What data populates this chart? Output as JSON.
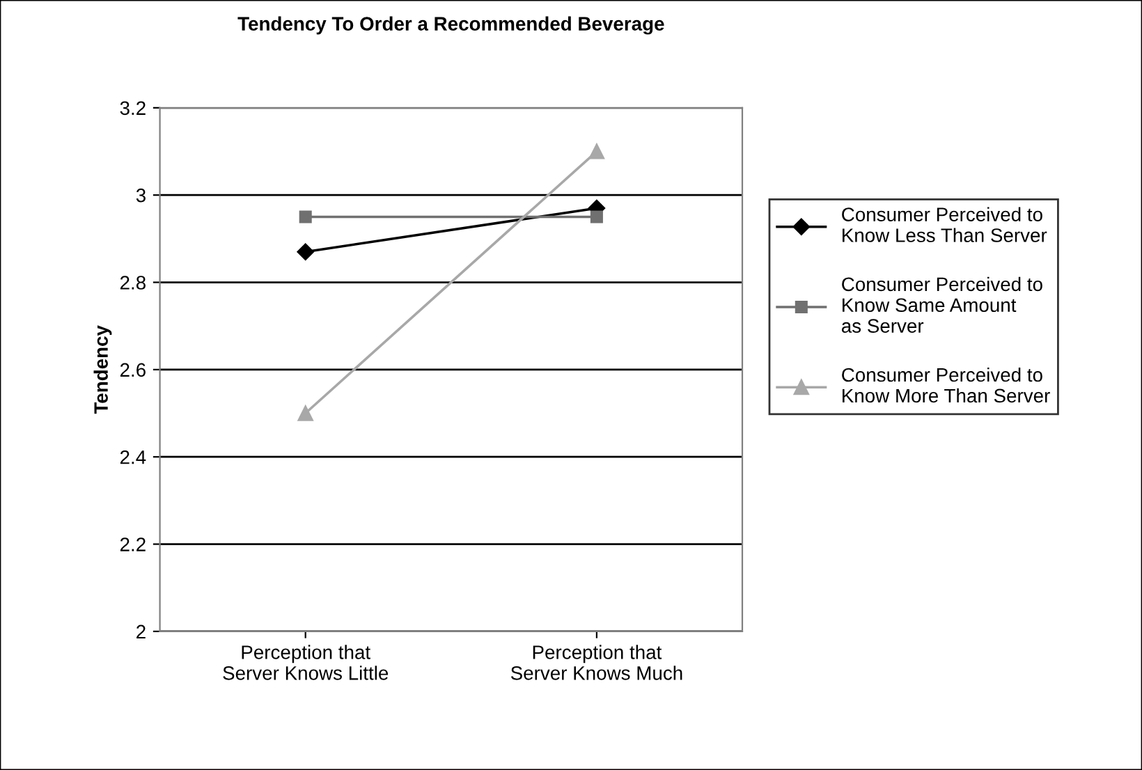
{
  "chart_data": {
    "type": "line",
    "title": "Tendency To Order a Recommended Beverage",
    "ylabel": "Tendency",
    "categories": [
      "Perception that\nServer Knows Little",
      "Perception that\nServer Knows Much"
    ],
    "series": [
      {
        "name": "Consumer Perceived to\nKnow Less Than Server",
        "color": "#000000",
        "marker": "diamond",
        "values": [
          2.87,
          2.97
        ]
      },
      {
        "name": "Consumer Perceived to\nKnow Same Amount\nas Server",
        "color": "#707070",
        "marker": "square",
        "values": [
          2.95,
          2.95
        ]
      },
      {
        "name": "Consumer Perceived to\nKnow More Than Server",
        "color": "#a8a8a8",
        "marker": "triangle",
        "values": [
          2.5,
          3.1
        ]
      }
    ],
    "ylim": [
      2,
      3.2
    ],
    "yticks": [
      2,
      2.2,
      2.4,
      2.6,
      2.8,
      3,
      3.2
    ],
    "grid": "y",
    "legend": "right",
    "line_style": "solid"
  }
}
